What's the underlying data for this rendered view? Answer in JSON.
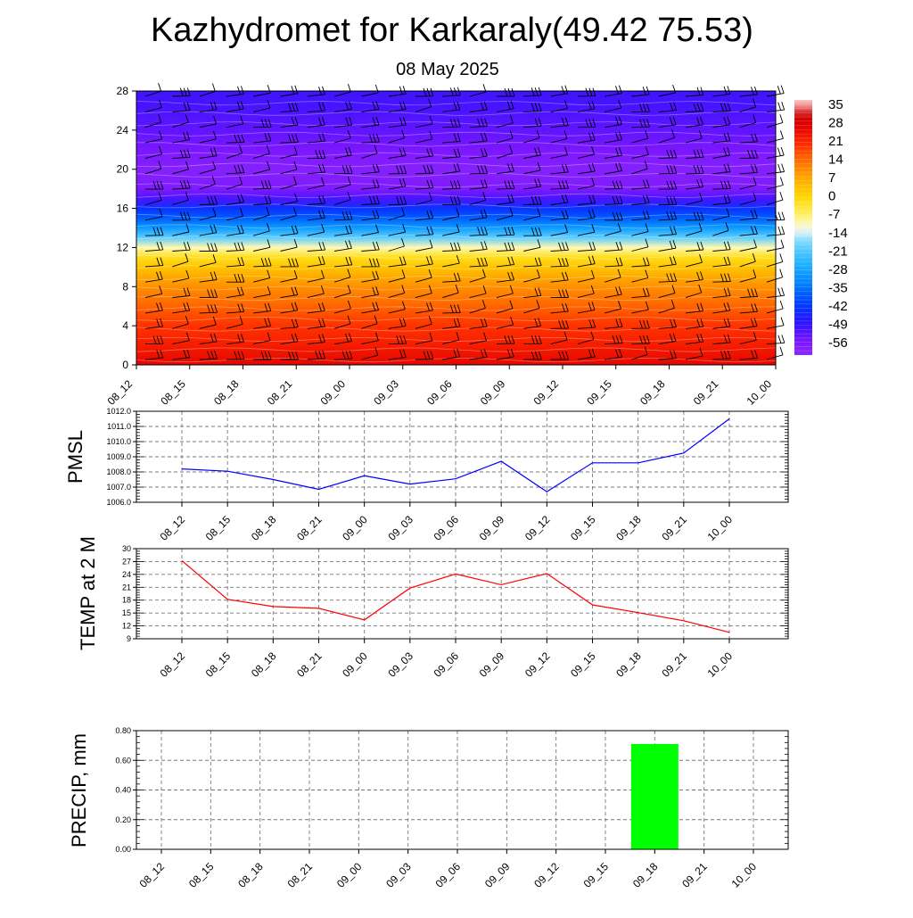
{
  "page": {
    "title": "Kazhydromet for Karkaraly(49.42 75.53)",
    "subtitle": "08 May 2025"
  },
  "chart_data": [
    {
      "type": "heatmap",
      "title": "",
      "x": [
        "08_12",
        "08_15",
        "08_18",
        "08_21",
        "09_00",
        "09_03",
        "09_06",
        "09_09",
        "09_12",
        "09_15",
        "09_18",
        "09_21",
        "10_00"
      ],
      "y_ticks": [
        0,
        4,
        8,
        12,
        16,
        20,
        24,
        28
      ],
      "ylim": [
        0,
        28
      ],
      "colorbar": {
        "labels": [
          "35",
          "28",
          "21",
          "14",
          "7",
          "0",
          "-7",
          "-14",
          "-21",
          "-28",
          "-35",
          "-42",
          "-49",
          "-56"
        ],
        "range": [
          -62,
          38
        ]
      },
      "profile": {
        "levels": [
          0,
          2,
          4,
          6,
          8,
          10,
          11,
          12,
          13,
          14,
          15,
          16,
          17,
          18,
          20,
          22,
          24,
          26,
          28
        ],
        "temps": [
          27,
          23,
          20,
          15,
          10,
          3,
          -2,
          -10,
          -20,
          -30,
          -38,
          -44,
          -52,
          -58,
          -60,
          -57,
          -54,
          -52,
          -51
        ]
      },
      "wind_barbs": true,
      "grid": false
    },
    {
      "type": "line",
      "title": "",
      "ylabel": "PMSL",
      "categories": [
        "08_12",
        "08_15",
        "08_18",
        "08_21",
        "09_00",
        "09_03",
        "09_06",
        "09_09",
        "09_12",
        "09_15",
        "09_18",
        "09_21",
        "10_00"
      ],
      "values": [
        1008.2,
        1008.05,
        1007.5,
        1006.85,
        1007.75,
        1007.2,
        1007.55,
        1008.7,
        1006.7,
        1008.6,
        1008.6,
        1009.25,
        1011.5
      ],
      "ylim": [
        1006.0,
        1012.0
      ],
      "y_ticks": [
        "1006.0",
        "1007.0",
        "1008.0",
        "1009.0",
        "1010.0",
        "1011.0",
        "1012.0"
      ],
      "color": "#0000ff",
      "grid": true
    },
    {
      "type": "line",
      "title": "",
      "ylabel": "TEMP at 2 M",
      "categories": [
        "08_12",
        "08_15",
        "08_18",
        "08_21",
        "09_00",
        "09_03",
        "09_06",
        "09_09",
        "09_12",
        "09_15",
        "09_18",
        "09_21",
        "10_00"
      ],
      "values": [
        27.2,
        18.2,
        16.5,
        16.1,
        13.4,
        20.8,
        24.1,
        21.6,
        24.2,
        16.9,
        15.1,
        13.2,
        10.5
      ],
      "ylim": [
        9,
        30
      ],
      "y_ticks": [
        "9",
        "12",
        "15",
        "18",
        "21",
        "24",
        "27",
        "30"
      ],
      "color": "#ff0000",
      "grid": true
    },
    {
      "type": "bar",
      "title": "",
      "ylabel": "PRECIP, mm",
      "categories": [
        "08_12",
        "08_15",
        "08_18",
        "08_21",
        "09_00",
        "09_03",
        "09_06",
        "09_09",
        "09_12",
        "09_15",
        "09_18",
        "09_21",
        "10_00"
      ],
      "values": [
        0,
        0,
        0,
        0,
        0,
        0,
        0,
        0,
        0,
        0,
        0.71,
        0,
        0
      ],
      "ylim": [
        0,
        0.8
      ],
      "y_ticks": [
        "0.00",
        "0.20",
        "0.40",
        "0.60",
        "0.80"
      ],
      "color": "#00ff00",
      "grid": true
    }
  ]
}
